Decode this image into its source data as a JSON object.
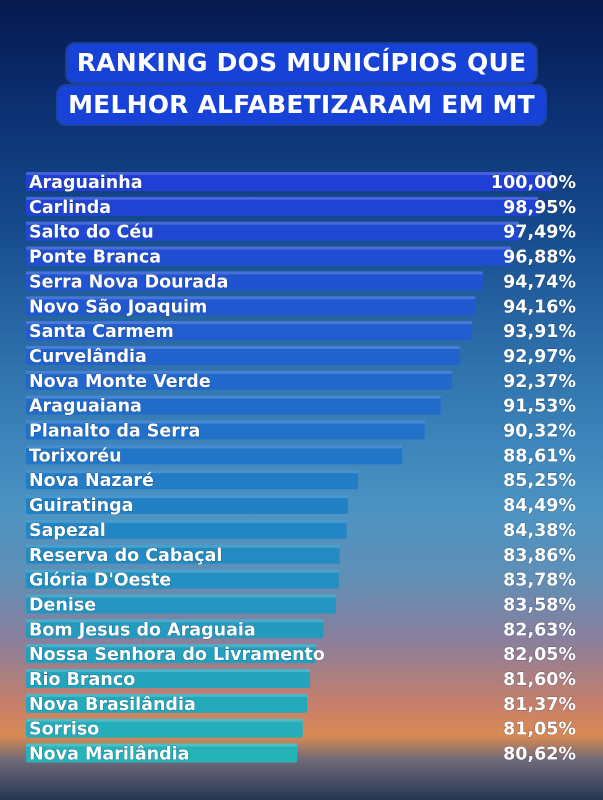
{
  "title": {
    "line1": "RANKING DOS MUNICÍPIOS QUE",
    "line2": "MELHOR ALFABETIZARAM EM MT"
  },
  "colors": {
    "title_bg": "#1742d8",
    "bar_top": "#1f3fd6",
    "bar_bottom": "#25b3b8",
    "text": "#ffffff"
  },
  "chart_data": {
    "type": "bar",
    "orientation": "horizontal",
    "categories": [
      "Araguainha",
      "Carlinda",
      "Salto do Céu",
      "Ponte Branca",
      "Serra Nova Dourada",
      "Novo São Joaquim",
      "Santa Carmem",
      "Curvelândia",
      "Nova Monte Verde",
      "Araguaiana",
      "Planalto da Serra",
      "Torixoréu",
      "Nova Nazaré",
      "Guiratinga",
      "Sapezal",
      "Reserva do Cabaçal",
      "Glória D'Oeste",
      "Denise",
      "Bom Jesus do Araguaia",
      "Nossa Senhora do Livramento",
      "Rio Branco",
      "Nova Brasilândia",
      "Sorriso",
      "Nova Marilândia"
    ],
    "values": [
      100.0,
      98.95,
      97.49,
      96.88,
      94.74,
      94.16,
      93.91,
      92.97,
      92.37,
      91.53,
      90.32,
      88.61,
      85.25,
      84.49,
      84.38,
      83.86,
      83.78,
      83.58,
      82.63,
      82.05,
      81.6,
      81.37,
      81.05,
      80.62
    ],
    "value_labels": [
      "100,00%",
      "98,95%",
      "97,49%",
      "96,88%",
      "94,74%",
      "94,16%",
      "93,91%",
      "92,97%",
      "92,37%",
      "91,53%",
      "90,32%",
      "88,61%",
      "85,25%",
      "84,49%",
      "84,38%",
      "83,86%",
      "83,78%",
      "83,58%",
      "82,63%",
      "82,05%",
      "81,60%",
      "81,37%",
      "81,05%",
      "80,62%"
    ],
    "xlabel": "",
    "ylabel": "",
    "xlim": [
      0,
      100
    ],
    "grid": false,
    "legend": "none"
  }
}
